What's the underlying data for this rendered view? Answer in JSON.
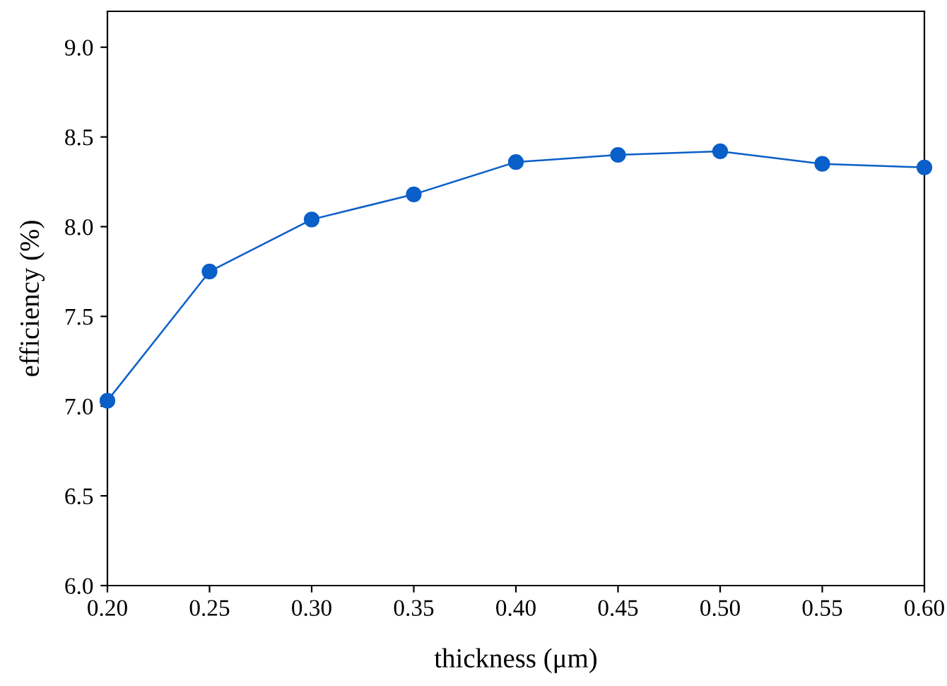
{
  "chart_data": {
    "type": "line",
    "xlabel": "thickness (μm)",
    "ylabel": "efficiency (%)",
    "x": [
      0.2,
      0.25,
      0.3,
      0.35,
      0.4,
      0.45,
      0.5,
      0.55,
      0.6
    ],
    "series": [
      {
        "color": "#0a5fc8",
        "values": [
          7.03,
          7.75,
          8.04,
          8.18,
          8.36,
          8.4,
          8.42,
          8.35,
          8.33
        ]
      }
    ],
    "xlim": [
      0.2,
      0.6
    ],
    "xticks": [
      {
        "value": 0.2,
        "label": "0.20"
      },
      {
        "value": 0.25,
        "label": "0.25"
      },
      {
        "value": 0.3,
        "label": "0.30"
      },
      {
        "value": 0.35,
        "label": "0.35"
      },
      {
        "value": 0.4,
        "label": "0.40"
      },
      {
        "value": 0.45,
        "label": "0.45"
      },
      {
        "value": 0.5,
        "label": "0.50"
      },
      {
        "value": 0.55,
        "label": "0.55"
      },
      {
        "value": 0.6,
        "label": "0.60"
      }
    ],
    "ylim": [
      6.0,
      9.2
    ],
    "yticks": [
      {
        "value": 6.0,
        "label": "6.0"
      },
      {
        "value": 6.5,
        "label": "6.5"
      },
      {
        "value": 7.0,
        "label": "7.0"
      },
      {
        "value": 7.5,
        "label": "7.5"
      },
      {
        "value": 8.0,
        "label": "8.0"
      },
      {
        "value": 8.5,
        "label": "8.5"
      },
      {
        "value": 9.0,
        "label": "9.0"
      }
    ],
    "marker": "circle",
    "line_style": "solid",
    "grid": false,
    "legend": false
  }
}
